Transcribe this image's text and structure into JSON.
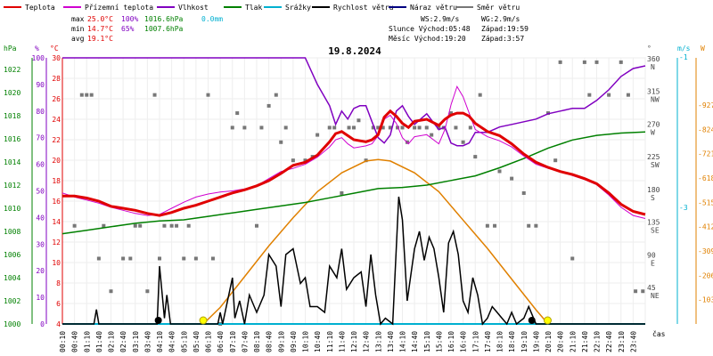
{
  "chart_data": {
    "type": "line",
    "title": "19.8.2024",
    "x_unit_label": "čas",
    "legend": [
      {
        "key": "temp",
        "label": "Teplota",
        "color": "#e00000"
      },
      {
        "key": "feels",
        "label": "Přízemní teplota",
        "color": "#d000d0"
      },
      {
        "key": "hum",
        "label": "Vlhkost",
        "color": "#8000c0"
      },
      {
        "key": "press",
        "label": "Tlak",
        "color": "#008000"
      },
      {
        "key": "rain",
        "label": "Srážky",
        "color": "#00b0d0"
      },
      {
        "key": "wind",
        "label": "Rychlost větru",
        "color": "#000000"
      },
      {
        "key": "gust",
        "label": "Náraz větru",
        "color": "#000080"
      },
      {
        "key": "dir",
        "label": "Směr větru",
        "color": "#777777"
      }
    ],
    "stats": {
      "max": {
        "label": "max",
        "temp": "25.0°C",
        "hum": "100%",
        "press": "1016.6hPa",
        "rain": "0.0mm"
      },
      "min": {
        "label": "min",
        "temp": "14.7°C",
        "hum": "65%",
        "press": "1007.6hPa"
      },
      "avg": {
        "label": "avg",
        "temp": "19.1°C"
      }
    },
    "info": {
      "ws": "WS:2.9m/s",
      "wg": "WG:2.9m/s",
      "sun": "Slunce Východ:05:48",
      "sun_set": "Západ:19:59",
      "moon": "Měsíc  Východ:19:20",
      "moon_set": "Západ:3:57"
    },
    "axes": {
      "hpa": {
        "label": "hPa",
        "ticks": [
          "1000",
          "1002",
          "1004",
          "1006",
          "1008",
          "1010",
          "1012",
          "1014",
          "1016",
          "1018",
          "1020",
          "1022"
        ]
      },
      "pct": {
        "label": "%",
        "ticks": [
          "0",
          "10",
          "20",
          "30",
          "40",
          "50",
          "60",
          "70",
          "80",
          "90",
          "100"
        ]
      },
      "temp": {
        "label": "°C",
        "ticks": [
          "4",
          "6",
          "8",
          "10",
          "12",
          "14",
          "16",
          "18",
          "20",
          "22",
          "24",
          "26",
          "28",
          "30"
        ]
      },
      "deg": {
        "label": "°",
        "ticks": [
          {
            "v": "45",
            "c": "NE"
          },
          {
            "v": "90",
            "c": "E"
          },
          {
            "v": "135",
            "c": "SE"
          },
          {
            "v": "180",
            "c": "S"
          },
          {
            "v": "225",
            "c": "SW"
          },
          {
            "v": "270",
            "c": "W"
          },
          {
            "v": "315",
            "c": "NW"
          },
          {
            "v": "360",
            "c": "N"
          }
        ]
      },
      "ms": {
        "label": "m/s",
        "ticks": [
          "3",
          "1"
        ]
      },
      "w": {
        "label": "W",
        "ticks": [
          "103",
          "206",
          "309",
          "412",
          "515",
          "618",
          "721",
          "824",
          "927"
        ]
      }
    },
    "x_ticks": [
      "00:10",
      "00:40",
      "01:10",
      "01:40",
      "02:10",
      "02:40",
      "03:10",
      "03:40",
      "04:10",
      "04:40",
      "05:10",
      "05:40",
      "06:10",
      "06:40",
      "07:10",
      "07:40",
      "08:10",
      "08:40",
      "09:10",
      "09:40",
      "10:10",
      "10:40",
      "11:10",
      "11:40",
      "12:10",
      "12:40",
      "13:10",
      "13:40",
      "14:10",
      "14:40",
      "15:10",
      "15:40",
      "16:10",
      "16:40",
      "17:10",
      "17:40",
      "18:10",
      "18:40",
      "19:10",
      "19:40",
      "20:10",
      "20:40",
      "21:10",
      "21:40",
      "22:10",
      "22:40",
      "23:10",
      "23:40"
    ],
    "x_range_hours": [
      0,
      24
    ],
    "series": {
      "temp": {
        "name": "Teplota",
        "unit": "°C",
        "x": [
          0,
          0.5,
          1,
          1.5,
          2,
          2.5,
          3,
          3.5,
          4,
          4.5,
          5,
          5.5,
          6,
          6.5,
          7,
          7.5,
          8,
          8.5,
          9,
          9.5,
          10,
          10.5,
          11,
          11.25,
          11.5,
          11.75,
          12,
          12.5,
          12.75,
          13,
          13.25,
          13.5,
          13.75,
          14,
          14.25,
          14.5,
          15,
          15.5,
          15.75,
          16,
          16.25,
          16.5,
          16.75,
          17,
          17.5,
          18,
          18.5,
          19,
          19.5,
          20,
          20.5,
          21,
          21.5,
          22,
          22.5,
          23,
          23.5,
          24
        ],
        "y": [
          16.5,
          16.5,
          16.3,
          16,
          15.5,
          15.3,
          15.1,
          14.8,
          14.6,
          14.9,
          15.3,
          15.6,
          16,
          16.4,
          16.8,
          17.1,
          17.5,
          18,
          18.7,
          19.5,
          19.8,
          20.5,
          21.8,
          22.6,
          22.8,
          22.4,
          22,
          21.8,
          22,
          22.5,
          24.2,
          24.8,
          24.3,
          23.6,
          23.2,
          23.8,
          24,
          23.4,
          24,
          24.4,
          24.6,
          24.6,
          24.3,
          23.6,
          22.8,
          22.4,
          21.6,
          20.6,
          19.8,
          19.3,
          18.9,
          18.6,
          18.2,
          17.7,
          16.8,
          15.7,
          15,
          14.7
        ]
      },
      "feels": {
        "name": "Přízemní teplota",
        "unit": "°C",
        "x": [
          0,
          0.5,
          1,
          1.5,
          2,
          2.5,
          3,
          3.5,
          4,
          4.5,
          5,
          5.5,
          6,
          6.5,
          7,
          7.5,
          8,
          8.5,
          9,
          9.5,
          10,
          10.5,
          11,
          11.25,
          11.5,
          11.75,
          12,
          12.5,
          12.75,
          13,
          13.25,
          13.5,
          13.75,
          14,
          14.25,
          14.5,
          15,
          15.5,
          15.75,
          16,
          16.25,
          16.5,
          16.75,
          17,
          17.5,
          18,
          18.5,
          19,
          19.5,
          20,
          20.5,
          21,
          21.5,
          22,
          22.5,
          23,
          23.5,
          24
        ],
        "y": [
          16.8,
          16.4,
          16.1,
          15.8,
          15.4,
          15.1,
          14.8,
          14.6,
          14.7,
          15.3,
          15.9,
          16.4,
          16.7,
          16.9,
          17,
          17.2,
          17.5,
          18.2,
          18.9,
          19.2,
          19.6,
          20.3,
          21.3,
          22,
          22.2,
          21.6,
          21.2,
          21.4,
          21.6,
          22.4,
          24,
          24.4,
          23.6,
          22.2,
          21.6,
          22.3,
          22.5,
          21.6,
          23,
          25.4,
          27.2,
          26.2,
          24.6,
          23,
          22.3,
          21.9,
          21.3,
          20.4,
          19.6,
          19.2,
          18.9,
          18.5,
          18.1,
          17.6,
          16.6,
          15.4,
          14.6,
          14.3
        ]
      },
      "hum": {
        "name": "Vlhkost",
        "unit": "%",
        "x": [
          0,
          1,
          2,
          3,
          4,
          5,
          6,
          7,
          8,
          9,
          9.5,
          10,
          10.5,
          11,
          11.25,
          11.5,
          11.75,
          12,
          12.25,
          12.5,
          12.75,
          13,
          13.25,
          13.5,
          13.75,
          14,
          14.25,
          14.5,
          14.75,
          15,
          15.25,
          15.5,
          15.75,
          16,
          16.25,
          16.5,
          16.75,
          17,
          17.5,
          18,
          18.5,
          19,
          19.5,
          20,
          20.5,
          21,
          21.5,
          22,
          22.5,
          23,
          23.5,
          24
        ],
        "y": [
          100,
          100,
          100,
          100,
          100,
          100,
          100,
          100,
          100,
          100,
          100,
          100,
          90,
          82,
          75,
          80,
          77,
          81,
          82,
          82,
          76,
          70,
          68,
          71,
          80,
          82,
          78,
          75,
          77,
          79,
          76,
          73,
          74,
          68,
          67,
          67,
          68,
          72,
          72,
          74,
          75,
          76,
          77,
          79,
          80,
          81,
          81,
          84,
          88,
          93,
          96,
          97
        ]
      },
      "press": {
        "name": "Tlak",
        "unit": "hPa",
        "x": [
          0,
          1,
          2,
          3,
          4,
          5,
          6,
          7,
          8,
          9,
          10,
          11,
          12,
          13,
          14,
          15,
          16,
          17,
          18,
          19,
          20,
          21,
          22,
          23,
          24
        ],
        "y": [
          1007.8,
          1008.1,
          1008.4,
          1008.7,
          1008.9,
          1009,
          1009.3,
          1009.6,
          1009.9,
          1010.2,
          1010.5,
          1010.9,
          1011.3,
          1011.7,
          1011.8,
          1012,
          1012.4,
          1012.8,
          1013.5,
          1014.3,
          1015.2,
          1015.9,
          1016.3,
          1016.5,
          1016.6
        ]
      },
      "rain": {
        "name": "Srážky",
        "unit": "mm",
        "x": [
          0,
          24
        ],
        "y": [
          0,
          0
        ]
      },
      "wind": {
        "name": "Rychlost větru",
        "unit": "m/s",
        "x": [
          0,
          1.3,
          1.4,
          1.5,
          3.9,
          4.0,
          4.2,
          4.3,
          4.45,
          4.6,
          6.4,
          6.5,
          6.6,
          7.0,
          7.1,
          7.3,
          7.5,
          7.7,
          8.0,
          8.3,
          8.5,
          8.8,
          9.0,
          9.2,
          9.5,
          9.8,
          10.0,
          10.2,
          10.5,
          10.8,
          11.0,
          11.3,
          11.5,
          11.7,
          12.0,
          12.3,
          12.5,
          12.7,
          12.9,
          13.1,
          13.3,
          13.6,
          13.85,
          14.0,
          14.2,
          14.5,
          14.7,
          14.9,
          15.1,
          15.3,
          15.5,
          15.7,
          15.9,
          16.1,
          16.3,
          16.5,
          16.7,
          16.9,
          17.1,
          17.3,
          17.5,
          17.7,
          17.9,
          18.1,
          18.3,
          18.5,
          18.7,
          19.0,
          19.2,
          19.5,
          24
        ],
        "y": [
          0,
          0,
          0.25,
          0,
          0,
          1.0,
          0.1,
          0.5,
          0,
          0,
          0,
          0.2,
          0,
          0.8,
          0.1,
          0.4,
          0,
          0.5,
          0.2,
          0.5,
          1.2,
          1.0,
          0.3,
          1.2,
          1.3,
          0.7,
          0.8,
          0.3,
          0.3,
          0.2,
          1.0,
          0.8,
          1.3,
          0.6,
          0.8,
          0.9,
          0.3,
          1.2,
          0.5,
          0,
          0.1,
          0,
          2.2,
          1.8,
          0.4,
          1.3,
          1.6,
          1.1,
          1.5,
          1.3,
          0.8,
          0.2,
          1.4,
          1.6,
          1.2,
          0.4,
          0.2,
          0.8,
          0.5,
          0,
          0.1,
          0.3,
          0.2,
          0.1,
          0,
          0.2,
          0,
          0.1,
          0.3,
          0,
          0
        ]
      },
      "w": {
        "name": "W",
        "unit": "W/m²",
        "x": [
          5.8,
          6.5,
          7.5,
          8.5,
          9.5,
          10.5,
          11.5,
          12.5,
          13,
          13.5,
          14.5,
          15.5,
          16.5,
          17.5,
          18.5,
          19.5,
          20
        ],
        "y": [
          0,
          70,
          200,
          330,
          450,
          560,
          640,
          690,
          696,
          690,
          640,
          560,
          440,
          320,
          190,
          60,
          0
        ]
      },
      "dir": {
        "name": "Směr větru",
        "unit": "°",
        "points": [
          [
            0.5,
            135
          ],
          [
            0.8,
            315
          ],
          [
            1.0,
            315
          ],
          [
            1.2,
            315
          ],
          [
            1.5,
            90
          ],
          [
            1.7,
            135
          ],
          [
            2.0,
            45
          ],
          [
            2.5,
            90
          ],
          [
            2.8,
            90
          ],
          [
            3.0,
            135
          ],
          [
            3.2,
            135
          ],
          [
            3.5,
            45
          ],
          [
            3.8,
            315
          ],
          [
            4.0,
            90
          ],
          [
            4.2,
            135
          ],
          [
            4.5,
            135
          ],
          [
            4.7,
            135
          ],
          [
            5.0,
            90
          ],
          [
            5.2,
            135
          ],
          [
            5.5,
            90
          ],
          [
            6.0,
            315
          ],
          [
            6.2,
            90
          ],
          [
            6.5,
            0
          ],
          [
            7.0,
            270
          ],
          [
            7.2,
            290
          ],
          [
            7.5,
            270
          ],
          [
            8.0,
            135
          ],
          [
            8.2,
            270
          ],
          [
            8.5,
            300
          ],
          [
            8.8,
            315
          ],
          [
            9.0,
            250
          ],
          [
            9.2,
            270
          ],
          [
            9.5,
            225
          ],
          [
            10.0,
            225
          ],
          [
            10.3,
            230
          ],
          [
            10.5,
            260
          ],
          [
            11.0,
            270
          ],
          [
            11.2,
            270
          ],
          [
            11.5,
            180
          ],
          [
            11.8,
            270
          ],
          [
            12.0,
            270
          ],
          [
            12.2,
            280
          ],
          [
            12.5,
            225
          ],
          [
            12.8,
            270
          ],
          [
            13.0,
            270
          ],
          [
            13.2,
            270
          ],
          [
            13.5,
            270
          ],
          [
            13.8,
            270
          ],
          [
            14.0,
            270
          ],
          [
            14.2,
            250
          ],
          [
            14.5,
            270
          ],
          [
            14.7,
            270
          ],
          [
            15.0,
            270
          ],
          [
            15.2,
            260
          ],
          [
            15.5,
            270
          ],
          [
            15.7,
            270
          ],
          [
            16.0,
            290
          ],
          [
            16.2,
            270
          ],
          [
            16.5,
            250
          ],
          [
            16.8,
            270
          ],
          [
            17.0,
            230
          ],
          [
            17.2,
            315
          ],
          [
            17.5,
            135
          ],
          [
            17.8,
            135
          ],
          [
            18.0,
            210
          ],
          [
            18.5,
            200
          ],
          [
            19.0,
            180
          ],
          [
            19.2,
            135
          ],
          [
            19.5,
            135
          ],
          [
            20.0,
            290
          ],
          [
            20.3,
            225
          ],
          [
            20.5,
            360
          ],
          [
            21.0,
            90
          ],
          [
            21.5,
            360
          ],
          [
            21.7,
            315
          ],
          [
            22.0,
            360
          ],
          [
            22.5,
            315
          ],
          [
            23.0,
            360
          ],
          [
            23.3,
            315
          ],
          [
            23.6,
            45
          ],
          [
            23.9,
            45
          ]
        ]
      }
    },
    "markers": {
      "moon": [
        {
          "label": "moonset",
          "x": 3.95
        },
        {
          "label": "moonrise",
          "x": 19.33
        }
      ],
      "sun": [
        {
          "label": "sunrise",
          "x": 5.8
        },
        {
          "label": "sunset",
          "x": 19.98
        }
      ]
    }
  }
}
